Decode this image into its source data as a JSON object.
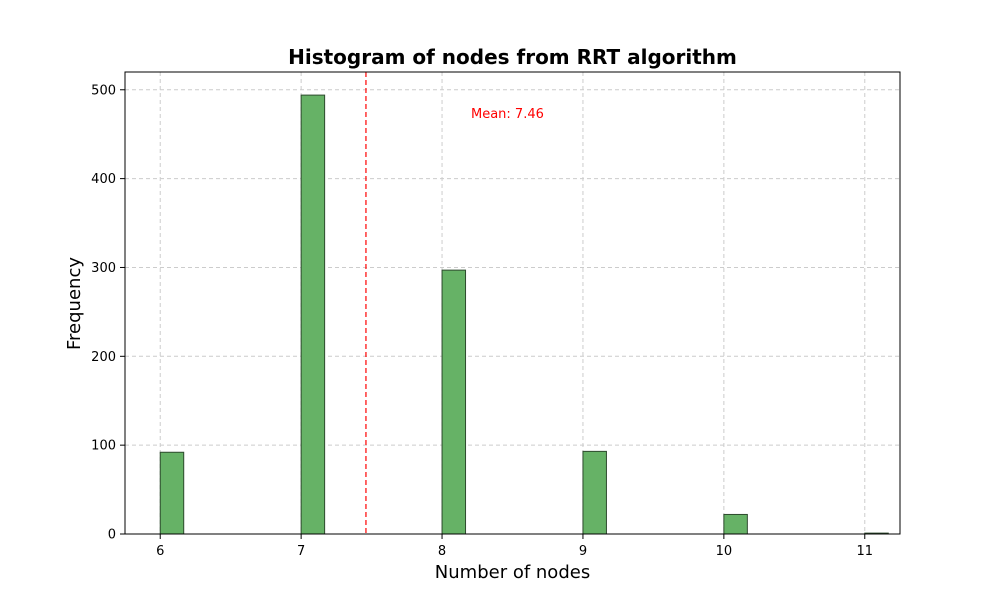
{
  "chart_data": {
    "type": "bar",
    "title": "Histogram of nodes from RRT algorithm",
    "xlabel": "Number of nodes",
    "ylabel": "Frequency",
    "xlim": [
      5.75,
      11.25
    ],
    "ylim": [
      0,
      520
    ],
    "x_ticks": [
      6,
      7,
      8,
      9,
      10,
      11
    ],
    "y_ticks": [
      0,
      100,
      200,
      300,
      400,
      500
    ],
    "grid": true,
    "bin_width": 0.1667,
    "bars": [
      {
        "x": 6,
        "value": 92
      },
      {
        "x": 7,
        "value": 494
      },
      {
        "x": 8,
        "value": 297
      },
      {
        "x": 9,
        "value": 93
      },
      {
        "x": 10,
        "value": 22
      },
      {
        "x": 11,
        "value": 1
      }
    ],
    "bar_color": "#66b266",
    "bar_edge_color": "#2d4a2d",
    "mean": {
      "value": 7.46,
      "label": "Mean: 7.46",
      "color": "#ff0000"
    }
  }
}
